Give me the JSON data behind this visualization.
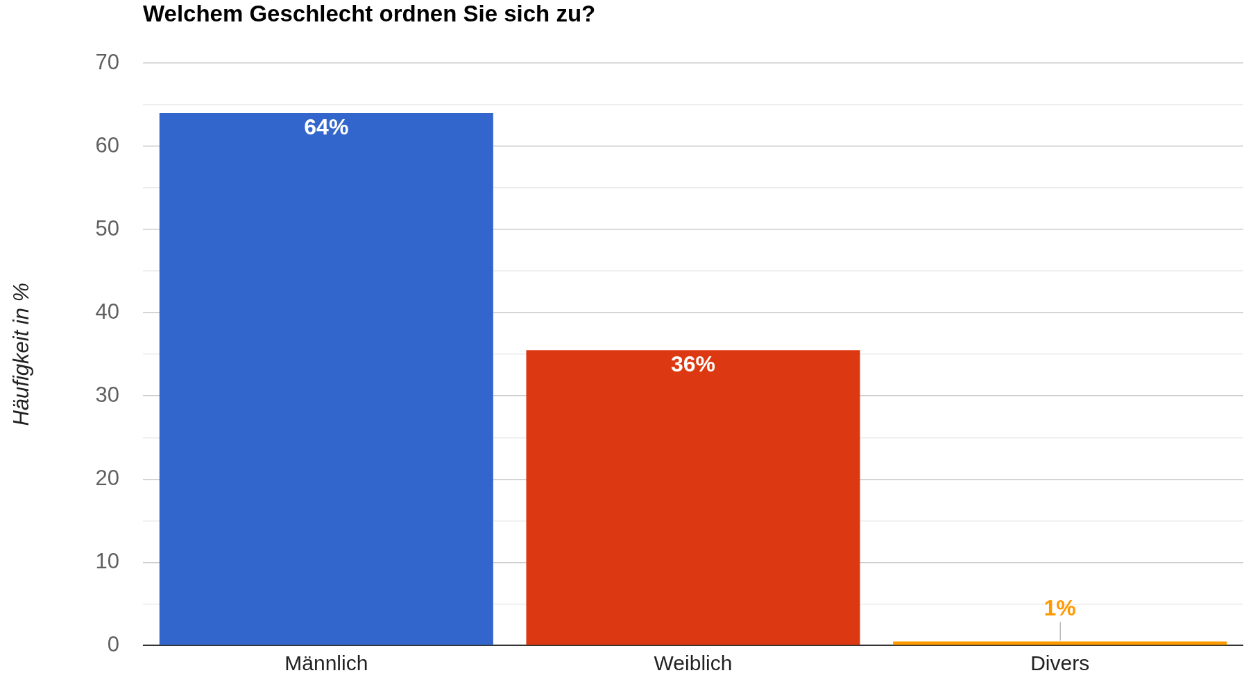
{
  "chart_data": {
    "type": "bar",
    "title": "Welchem Geschlecht ordnen Sie sich zu?",
    "ylabel": "Häufigkeit in %",
    "categories": [
      "Männlich",
      "Weiblich",
      "Divers"
    ],
    "values": [
      64,
      35.5,
      0.5
    ],
    "colors": [
      "#3366cc",
      "#dc3912",
      "#ff9900"
    ],
    "value_labels": [
      "64%",
      "36%",
      "1%"
    ],
    "ylim": [
      0,
      70
    ],
    "yticks": [
      0,
      {
        "value": 5,
        "label": null
      },
      10,
      {
        "value": 15,
        "label": null
      },
      20,
      {
        "value": 25,
        "label": null
      },
      30,
      {
        "value": 35,
        "label": null
      },
      40,
      {
        "value": 45,
        "label": null
      },
      50,
      {
        "value": 55,
        "label": null
      },
      60,
      {
        "value": 65,
        "label": null
      },
      70
    ],
    "grid": "y"
  }
}
